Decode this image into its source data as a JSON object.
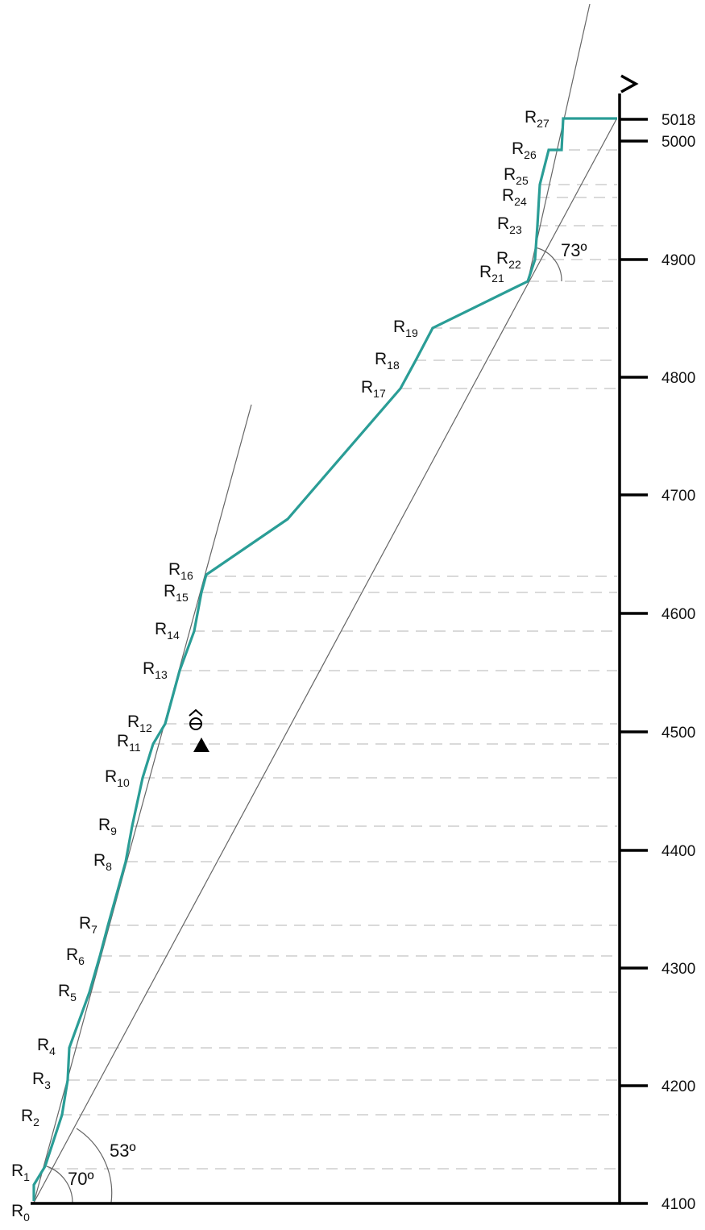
{
  "diagram": {
    "altitude_axis": {
      "ticks": [
        {
          "value": 4100,
          "label": "4100"
        },
        {
          "value": 4200,
          "label": "4200"
        },
        {
          "value": 4300,
          "label": "4300"
        },
        {
          "value": 4400,
          "label": "4400"
        },
        {
          "value": 4500,
          "label": "4500"
        },
        {
          "value": 4600,
          "label": "4600"
        },
        {
          "value": 4700,
          "label": "4700"
        },
        {
          "value": 4800,
          "label": "4800"
        },
        {
          "value": 4900,
          "label": "4900"
        },
        {
          "value": 5000,
          "label": "5000"
        },
        {
          "value": 5018,
          "label": "5018"
        }
      ]
    },
    "angles": [
      {
        "label": "70º"
      },
      {
        "label": "53º"
      },
      {
        "label": "73º"
      }
    ],
    "stations": [
      {
        "letter": "R",
        "sub": "0"
      },
      {
        "letter": "R",
        "sub": "1"
      },
      {
        "letter": "R",
        "sub": "2"
      },
      {
        "letter": "R",
        "sub": "3"
      },
      {
        "letter": "R",
        "sub": "4"
      },
      {
        "letter": "R",
        "sub": "5"
      },
      {
        "letter": "R",
        "sub": "6"
      },
      {
        "letter": "R",
        "sub": "7"
      },
      {
        "letter": "R",
        "sub": "8"
      },
      {
        "letter": "R",
        "sub": "9"
      },
      {
        "letter": "R",
        "sub": "10"
      },
      {
        "letter": "R",
        "sub": "11"
      },
      {
        "letter": "R",
        "sub": "12"
      },
      {
        "letter": "R",
        "sub": "13"
      },
      {
        "letter": "R",
        "sub": "14"
      },
      {
        "letter": "R",
        "sub": "15"
      },
      {
        "letter": "R",
        "sub": "16"
      },
      {
        "letter": "R",
        "sub": "17"
      },
      {
        "letter": "R",
        "sub": "18"
      },
      {
        "letter": "R",
        "sub": "19"
      },
      {
        "letter": "R",
        "sub": "21"
      },
      {
        "letter": "R",
        "sub": "22"
      },
      {
        "letter": "R",
        "sub": "23"
      },
      {
        "letter": "R",
        "sub": "24"
      },
      {
        "letter": "R",
        "sub": "25"
      },
      {
        "letter": "R",
        "sub": "26"
      },
      {
        "letter": "R",
        "sub": "27"
      }
    ],
    "colors": {
      "route": "#2a9d96",
      "axis": "#000000",
      "guide": "#666666",
      "dash": "#c4c4c4"
    },
    "icons": [
      "summit-flag-icon",
      "bivouac-icon",
      "camp-tent-icon"
    ]
  }
}
